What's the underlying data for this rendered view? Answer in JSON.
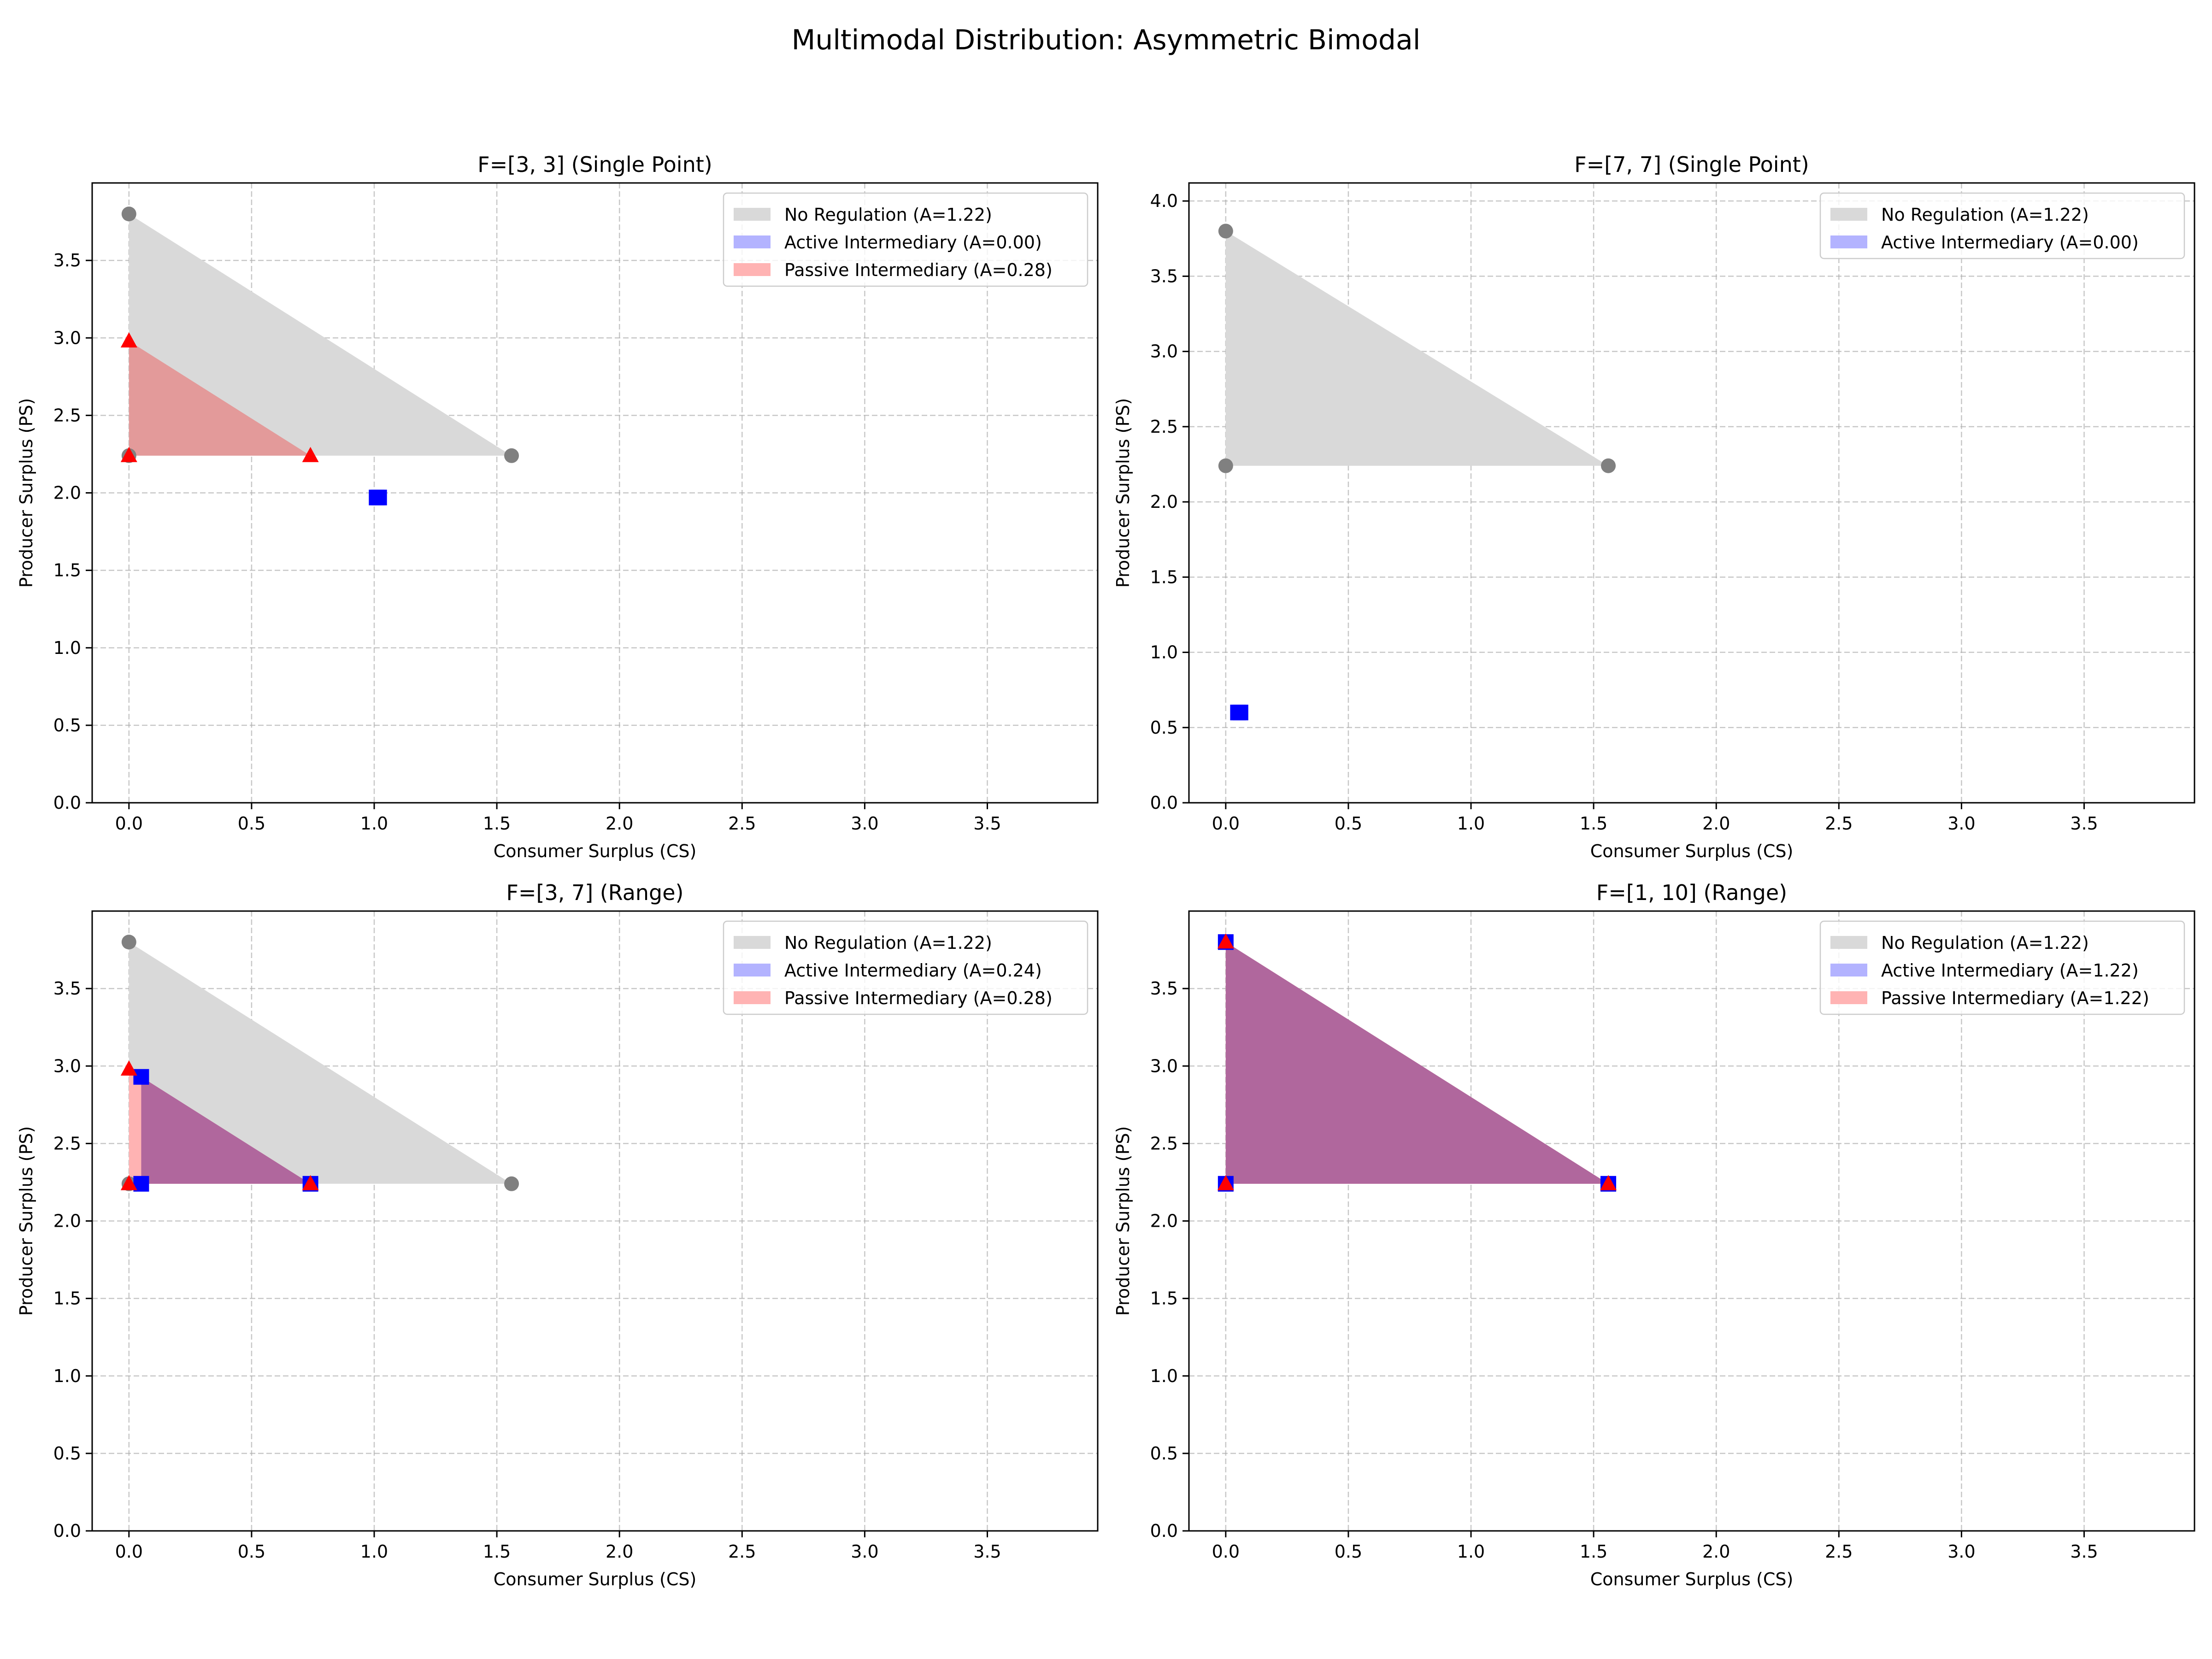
{
  "suptitle": "Multimodal Distribution: Asymmetric Bimodal",
  "colors": {
    "no_regulation": "#808080",
    "no_regulation_fill": "#d9d9d9",
    "active": "#0000ff",
    "active_fill": "#b3b3ff",
    "passive": "#ff0000",
    "passive_fill": "#ffb3b3",
    "overlap_fill": "#b0679d",
    "passive_over_gray": "#e39a9a"
  },
  "chart_data": [
    {
      "type": "area",
      "title": "F=[3, 3] (Single Point)",
      "xlabel": "Consumer Surplus (CS)",
      "ylabel": "Producer Surplus (PS)",
      "xlim": [
        -0.15,
        3.95
      ],
      "ylim": [
        0,
        4.0
      ],
      "xticks": [
        "0.0",
        "0.5",
        "1.0",
        "1.5",
        "2.0",
        "2.5",
        "3.0",
        "3.5"
      ],
      "yticks": [
        "0.0",
        "0.5",
        "1.0",
        "1.5",
        "2.0",
        "2.5",
        "3.0",
        "3.5"
      ],
      "grid": true,
      "legend_position": "top-right",
      "series": [
        {
          "name": "No Regulation (A=1.22)",
          "key": "gray",
          "marker": "circle",
          "points": [
            [
              0,
              3.8
            ],
            [
              0,
              2.24
            ],
            [
              1.56,
              2.24
            ]
          ]
        },
        {
          "name": "Active Intermediary (A=0.00)",
          "key": "blue",
          "marker": "square",
          "points": [
            [
              1.01,
              1.97
            ],
            [
              1.02,
              1.97
            ]
          ]
        },
        {
          "name": "Passive Intermediary (A=0.28)",
          "key": "red",
          "marker": "triangle",
          "points": [
            [
              0,
              2.98
            ],
            [
              0,
              2.24
            ],
            [
              0.74,
              2.24
            ]
          ]
        }
      ]
    },
    {
      "type": "area",
      "title": "F=[7, 7] (Single Point)",
      "xlabel": "Consumer Surplus (CS)",
      "ylabel": "Producer Surplus (PS)",
      "xlim": [
        -0.15,
        3.95
      ],
      "ylim": [
        0,
        4.12
      ],
      "xticks": [
        "0.0",
        "0.5",
        "1.0",
        "1.5",
        "2.0",
        "2.5",
        "3.0",
        "3.5"
      ],
      "yticks": [
        "0.0",
        "0.5",
        "1.0",
        "1.5",
        "2.0",
        "2.5",
        "3.0",
        "3.5",
        "4.0"
      ],
      "grid": true,
      "legend_position": "top-right",
      "series": [
        {
          "name": "No Regulation (A=1.22)",
          "key": "gray",
          "marker": "circle",
          "points": [
            [
              0,
              3.8
            ],
            [
              0,
              2.24
            ],
            [
              1.56,
              2.24
            ]
          ]
        },
        {
          "name": "Active Intermediary (A=0.00)",
          "key": "blue",
          "marker": "square",
          "points": [
            [
              0.05,
              0.6
            ],
            [
              0.06,
              0.6
            ]
          ]
        }
      ]
    },
    {
      "type": "area",
      "title": "F=[3, 7] (Range)",
      "xlabel": "Consumer Surplus (CS)",
      "ylabel": "Producer Surplus (PS)",
      "xlim": [
        -0.15,
        3.95
      ],
      "ylim": [
        0,
        4.0
      ],
      "xticks": [
        "0.0",
        "0.5",
        "1.0",
        "1.5",
        "2.0",
        "2.5",
        "3.0",
        "3.5"
      ],
      "yticks": [
        "0.0",
        "0.5",
        "1.0",
        "1.5",
        "2.0",
        "2.5",
        "3.0",
        "3.5"
      ],
      "grid": true,
      "legend_position": "top-right",
      "series": [
        {
          "name": "No Regulation (A=1.22)",
          "key": "gray",
          "marker": "circle",
          "points": [
            [
              0,
              3.8
            ],
            [
              0,
              2.24
            ],
            [
              1.56,
              2.24
            ]
          ]
        },
        {
          "name": "Active Intermediary (A=0.24)",
          "key": "blue",
          "marker": "square",
          "points": [
            [
              0.05,
              2.93
            ],
            [
              0.05,
              2.24
            ],
            [
              0.74,
              2.24
            ]
          ]
        },
        {
          "name": "Passive Intermediary (A=0.28)",
          "key": "red",
          "marker": "triangle",
          "points": [
            [
              0,
              2.98
            ],
            [
              0,
              2.24
            ],
            [
              0.74,
              2.24
            ]
          ]
        }
      ]
    },
    {
      "type": "area",
      "title": "F=[1, 10] (Range)",
      "xlabel": "Consumer Surplus (CS)",
      "ylabel": "Producer Surplus (PS)",
      "xlim": [
        -0.15,
        3.95
      ],
      "ylim": [
        0,
        4.0
      ],
      "xticks": [
        "0.0",
        "0.5",
        "1.0",
        "1.5",
        "2.0",
        "2.5",
        "3.0",
        "3.5"
      ],
      "yticks": [
        "0.0",
        "0.5",
        "1.0",
        "1.5",
        "2.0",
        "2.5",
        "3.0",
        "3.5"
      ],
      "grid": true,
      "legend_position": "top-right",
      "series": [
        {
          "name": "No Regulation (A=1.22)",
          "key": "gray",
          "marker": "circle",
          "points": [
            [
              0,
              3.8
            ],
            [
              0,
              2.24
            ],
            [
              1.56,
              2.24
            ]
          ]
        },
        {
          "name": "Active Intermediary (A=1.22)",
          "key": "blue",
          "marker": "square",
          "points": [
            [
              0,
              3.8
            ],
            [
              0,
              2.24
            ],
            [
              1.56,
              2.24
            ]
          ]
        },
        {
          "name": "Passive Intermediary (A=1.22)",
          "key": "red",
          "marker": "triangle",
          "points": [
            [
              0,
              3.8
            ],
            [
              0,
              2.24
            ],
            [
              1.56,
              2.24
            ]
          ]
        }
      ]
    }
  ]
}
